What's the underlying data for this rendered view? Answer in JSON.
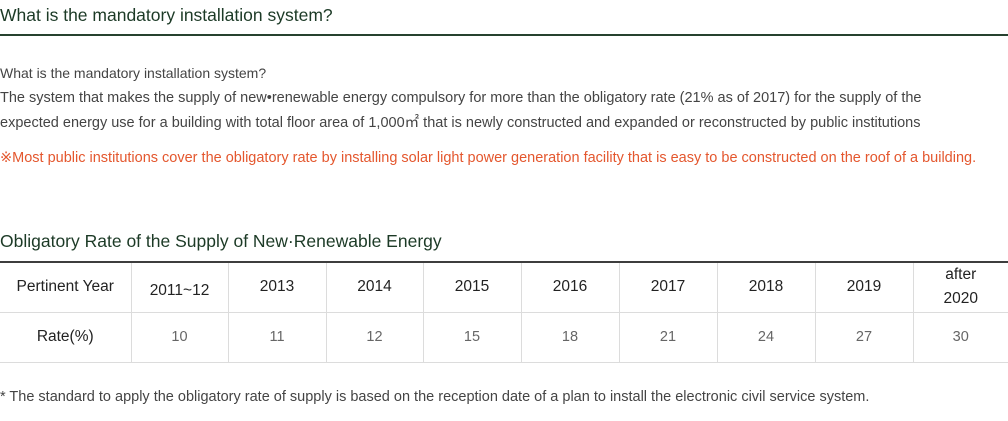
{
  "section1": {
    "title": "What is the mandatory installation system?",
    "question": "What is the mandatory installation system?",
    "line1": "The system that makes the supply of new•renewable energy compulsory for more than the obligatory rate (21% as of 2017) for the supply of the",
    "line2": "expected energy use for a building with total floor area of 1,000㎡ that is newly constructed and expanded or reconstructed by public institutions",
    "notice": "※Most public institutions cover the obligatory rate by installing solar light power generation facility that is easy to be constructed on the roof of a building."
  },
  "section2": {
    "title": "Obligatory Rate of the Supply of New·Renewable Energy",
    "table": {
      "header_label": "Pertinent Year",
      "row_label": "Rate(%)",
      "years": [
        "2011~12",
        "2013",
        "2014",
        "2015",
        "2016",
        "2017",
        "2018",
        "2019",
        "after 2020"
      ],
      "rates": [
        "10",
        "11",
        "12",
        "15",
        "18",
        "21",
        "24",
        "27",
        "30"
      ]
    },
    "footnote": "* The standard to apply the obligatory rate of supply is based on the reception date of a plan to install the electronic civil service system."
  }
}
